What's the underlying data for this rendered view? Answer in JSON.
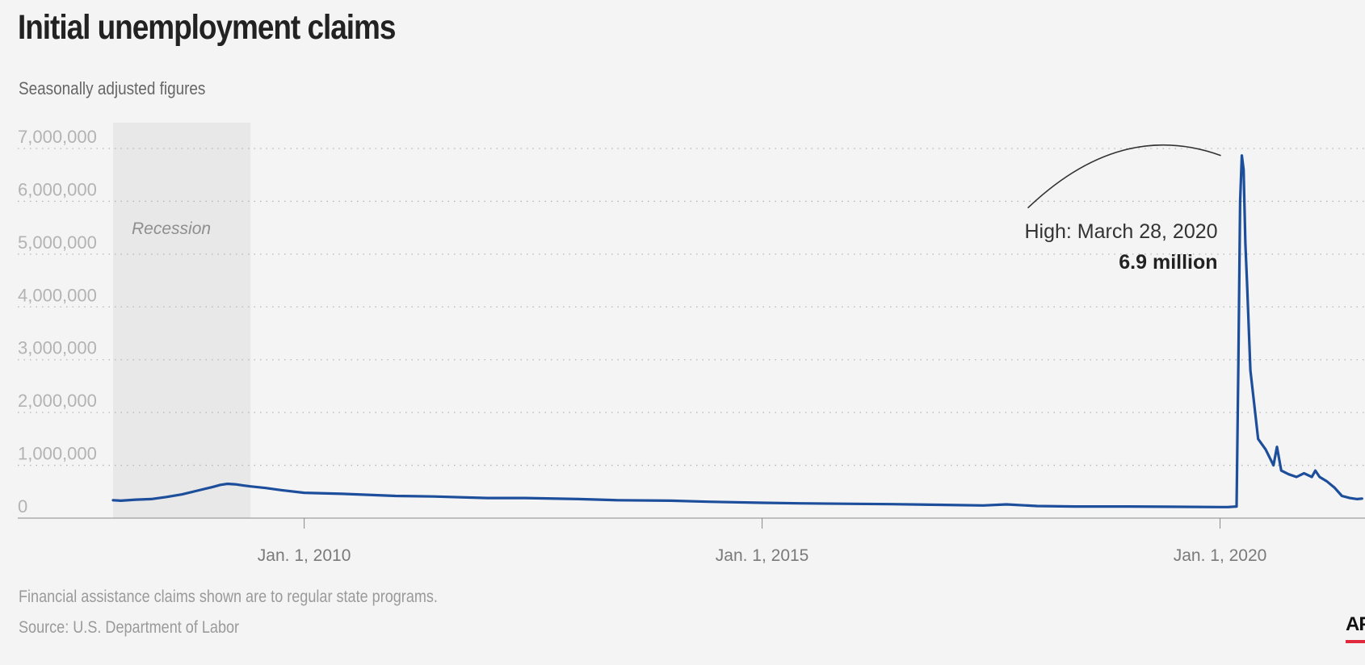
{
  "title": "Initial unemployment claims",
  "subtitle": "Seasonally adjusted figures",
  "note": "Financial assistance claims shown are to regular state programs.",
  "source": "Source: U.S. Department of Labor",
  "logo": "AP",
  "colors": {
    "line": "#1d4e9b",
    "recession": "#e8e8e8",
    "logo_accent": "#e0293c"
  },
  "chart_data": {
    "type": "line",
    "title": "Initial unemployment claims",
    "subtitle": "Seasonally adjusted figures",
    "xlabel": "",
    "ylabel": "",
    "xlim": [
      "2007-12-01",
      "2021-08-01"
    ],
    "ylim": [
      0,
      7000000
    ],
    "y_ticks": [
      0,
      1000000,
      2000000,
      3000000,
      4000000,
      5000000,
      6000000,
      7000000
    ],
    "y_tick_labels": [
      "0",
      "1,000,000",
      "2,000,000",
      "3,000,000",
      "4,000,000",
      "5,000,000",
      "6,000,000",
      "7,000,000"
    ],
    "x_ticks": [
      "2010-01-01",
      "2015-01-01",
      "2020-01-01"
    ],
    "x_tick_labels": [
      "Jan. 1, 2010",
      "Jan. 1, 2015",
      "Jan. 1, 2020"
    ],
    "grid": true,
    "shaded_regions": [
      {
        "label": "Recession",
        "start": "2007-12-01",
        "end": "2009-06-01"
      }
    ],
    "annotations": [
      {
        "label": "High: March 28, 2020",
        "value_label": "6.9 million",
        "x": "2020-03-28",
        "y": 6867000
      }
    ],
    "series": [
      {
        "x": [
          "2007-12-01",
          "2008-01-01",
          "2008-03-01",
          "2008-05-01",
          "2008-07-01",
          "2008-09-01",
          "2008-11-01",
          "2009-01-01",
          "2009-02-01",
          "2009-03-01",
          "2009-04-01",
          "2009-05-01",
          "2009-06-01",
          "2009-08-01",
          "2009-10-01",
          "2010-01-01",
          "2010-06-01",
          "2011-01-01",
          "2011-06-01",
          "2012-01-01",
          "2012-06-01",
          "2013-01-01",
          "2013-06-01",
          "2014-01-01",
          "2014-06-01",
          "2015-01-01",
          "2015-06-01",
          "2016-01-01",
          "2016-06-01",
          "2017-01-01",
          "2017-06-01",
          "2017-09-01",
          "2018-01-01",
          "2018-06-01",
          "2019-01-01",
          "2019-06-01",
          "2020-01-01",
          "2020-02-01",
          "2020-03-07",
          "2020-03-14",
          "2020-03-21",
          "2020-03-28",
          "2020-04-04",
          "2020-04-11",
          "2020-04-18",
          "2020-05-01",
          "2020-06-01",
          "2020-07-01",
          "2020-08-01",
          "2020-08-15",
          "2020-09-01",
          "2020-10-01",
          "2020-11-01",
          "2020-12-01",
          "2021-01-01",
          "2021-01-15",
          "2021-02-01",
          "2021-03-01",
          "2021-04-01",
          "2021-05-01",
          "2021-06-01",
          "2021-07-01",
          "2021-07-20"
        ],
        "values": [
          340000,
          330000,
          350000,
          360000,
          400000,
          450000,
          520000,
          590000,
          630000,
          650000,
          640000,
          620000,
          600000,
          570000,
          530000,
          480000,
          460000,
          420000,
          410000,
          380000,
          380000,
          360000,
          340000,
          330000,
          310000,
          290000,
          280000,
          270000,
          265000,
          250000,
          240000,
          260000,
          230000,
          220000,
          220000,
          215000,
          210000,
          210000,
          220000,
          2900000,
          6000000,
          6867000,
          6600000,
          5200000,
          4400000,
          2800000,
          1500000,
          1300000,
          1000000,
          1350000,
          900000,
          830000,
          780000,
          850000,
          780000,
          900000,
          780000,
          700000,
          580000,
          420000,
          380000,
          360000,
          370000
        ]
      }
    ]
  }
}
